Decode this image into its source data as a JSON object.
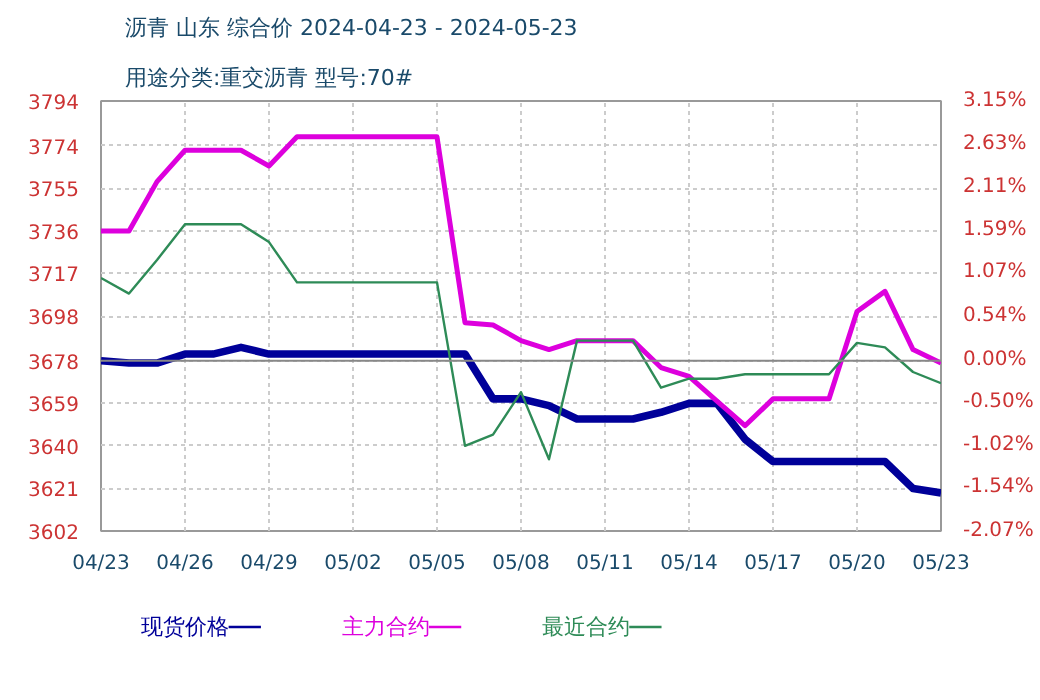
{
  "chart_data": {
    "type": "line",
    "title": "沥青 山东 综合价 2024-04-23 - 2024-05-23",
    "subtitle": "用途分类:重交沥青 型号:70#",
    "x": [
      "2024-04-23",
      "2024-04-24",
      "2024-04-25",
      "2024-04-26",
      "2024-04-27",
      "2024-04-28",
      "2024-04-29",
      "2024-04-30",
      "2024-05-01",
      "2024-05-02",
      "2024-05-03",
      "2024-05-04",
      "2024-05-05",
      "2024-05-06",
      "2024-05-07",
      "2024-05-08",
      "2024-05-09",
      "2024-05-10",
      "2024-05-11",
      "2024-05-12",
      "2024-05-13",
      "2024-05-14",
      "2024-05-15",
      "2024-05-16",
      "2024-05-17",
      "2024-05-18",
      "2024-05-19",
      "2024-05-20",
      "2024-05-21",
      "2024-05-22",
      "2024-05-23"
    ],
    "series": [
      {
        "name": "现货价格",
        "color": "#000099",
        "values": [
          3678,
          3677,
          3677,
          3681,
          3681,
          3684,
          3681,
          3681,
          3681,
          3681,
          3681,
          3681,
          3681,
          3681,
          3661,
          3661,
          3658,
          3652,
          3652,
          3652,
          3655,
          3659,
          3659,
          3643,
          3633,
          3633,
          3633,
          3633,
          3633,
          3621,
          3619
        ]
      },
      {
        "name": "主力合约",
        "color": "#dd00dd",
        "values": [
          3736,
          3736,
          3758,
          3772,
          3772,
          3772,
          3765,
          3778,
          3778,
          3778,
          3778,
          3778,
          3778,
          3695,
          3694,
          3687,
          3683,
          3687,
          3687,
          3687,
          3675,
          3671,
          3660,
          3649,
          3661,
          3661,
          3661,
          3700,
          3709,
          3683,
          3677
        ]
      },
      {
        "name": "最近合约",
        "color": "#2e8b57",
        "values": [
          3715,
          3708,
          3723,
          3739,
          3739,
          3739,
          3731,
          3713,
          3713,
          3713,
          3713,
          3713,
          3713,
          3640,
          3645,
          3664,
          3634,
          3687,
          3687,
          3687,
          3666,
          3670,
          3670,
          3672,
          3672,
          3672,
          3672,
          3686,
          3684,
          3673,
          3668
        ]
      }
    ],
    "ylim": [
      3602,
      3794
    ],
    "yticks": [
      3602,
      3621,
      3640,
      3659,
      3678,
      3698,
      3717,
      3736,
      3755,
      3774,
      3794
    ],
    "y2lim": [
      -2.07,
      3.15
    ],
    "y2ticks": [
      {
        "value": -2.07,
        "label": "-2.07%"
      },
      {
        "value": -1.54,
        "label": "-1.54%"
      },
      {
        "value": -1.02,
        "label": "-1.02%"
      },
      {
        "value": -0.5,
        "label": "-0.50%"
      },
      {
        "value": 0,
        "label": "0.00%"
      },
      {
        "value": 0.54,
        "label": "0.54%"
      },
      {
        "value": 1.07,
        "label": "1.07%"
      },
      {
        "value": 1.59,
        "label": "1.59%"
      },
      {
        "value": 2.11,
        "label": "2.11%"
      },
      {
        "value": 2.63,
        "label": "2.63%"
      },
      {
        "value": 3.15,
        "label": "3.15%"
      }
    ],
    "xlim": [
      "2024-04-23",
      "2024-05-23"
    ],
    "xticks": [
      {
        "value": "2024-04-23",
        "label": "04/23"
      },
      {
        "value": "2024-04-26",
        "label": "04/26"
      },
      {
        "value": "2024-04-29",
        "label": "04/29"
      },
      {
        "value": "2024-05-02",
        "label": "05/02"
      },
      {
        "value": "2024-05-05",
        "label": "05/05"
      },
      {
        "value": "2024-05-08",
        "label": "05/08"
      },
      {
        "value": "2024-05-11",
        "label": "05/11"
      },
      {
        "value": "2024-05-14",
        "label": "05/14"
      },
      {
        "value": "2024-05-17",
        "label": "05/17"
      },
      {
        "value": "2024-05-20",
        "label": "05/20"
      },
      {
        "value": "2024-05-23",
        "label": "05/23"
      }
    ],
    "ref_lines": [
      {
        "axis": "y",
        "value": 3678,
        "color": "#888888"
      }
    ],
    "grid": true,
    "legend": "bottom",
    "marker": "none",
    "line_style": "solid"
  }
}
